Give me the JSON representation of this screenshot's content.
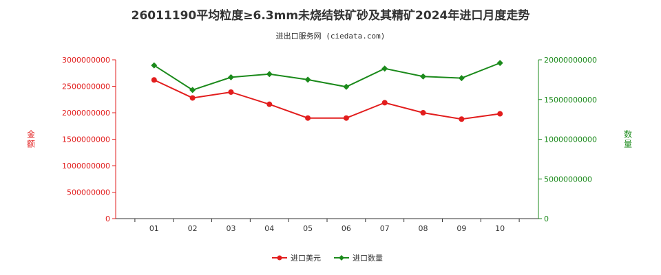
{
  "title": "26011190平均粒度≥6.3mm未烧结铁矿砂及其精矿2024年进口月度走势",
  "subtitle": "进出口服务网 (ciedata.com)",
  "colors": {
    "amount": "#e21d1d",
    "quantity": "#1b8a1b"
  },
  "chart_data": {
    "type": "line",
    "categories": [
      "01",
      "02",
      "03",
      "04",
      "05",
      "06",
      "07",
      "08",
      "09",
      "10"
    ],
    "series": [
      {
        "name": "进口美元",
        "axis": "left",
        "color": "#e21d1d",
        "marker": "circle",
        "values": [
          2620000000,
          2280000000,
          2390000000,
          2160000000,
          1900000000,
          1900000000,
          2190000000,
          2000000000,
          1880000000,
          1980000000
        ]
      },
      {
        "name": "进口数量",
        "axis": "right",
        "color": "#1b8a1b",
        "marker": "diamond",
        "values": [
          19300000000,
          16200000000,
          17800000000,
          18200000000,
          17500000000,
          16600000000,
          18900000000,
          17900000000,
          17700000000,
          19600000000
        ]
      }
    ],
    "y_left": {
      "label": "金额",
      "min": 0,
      "max": 3000000000,
      "ticks": [
        "0",
        "500000000",
        "1000000000",
        "1500000000",
        "2000000000",
        "2500000000",
        "3000000000"
      ]
    },
    "y_right": {
      "label": "数量",
      "min": 0,
      "max": 20000000000,
      "ticks": [
        "0",
        "5000000000",
        "10000000000",
        "15000000000",
        "20000000000"
      ]
    },
    "grid": false,
    "legend_position": "bottom-center"
  }
}
